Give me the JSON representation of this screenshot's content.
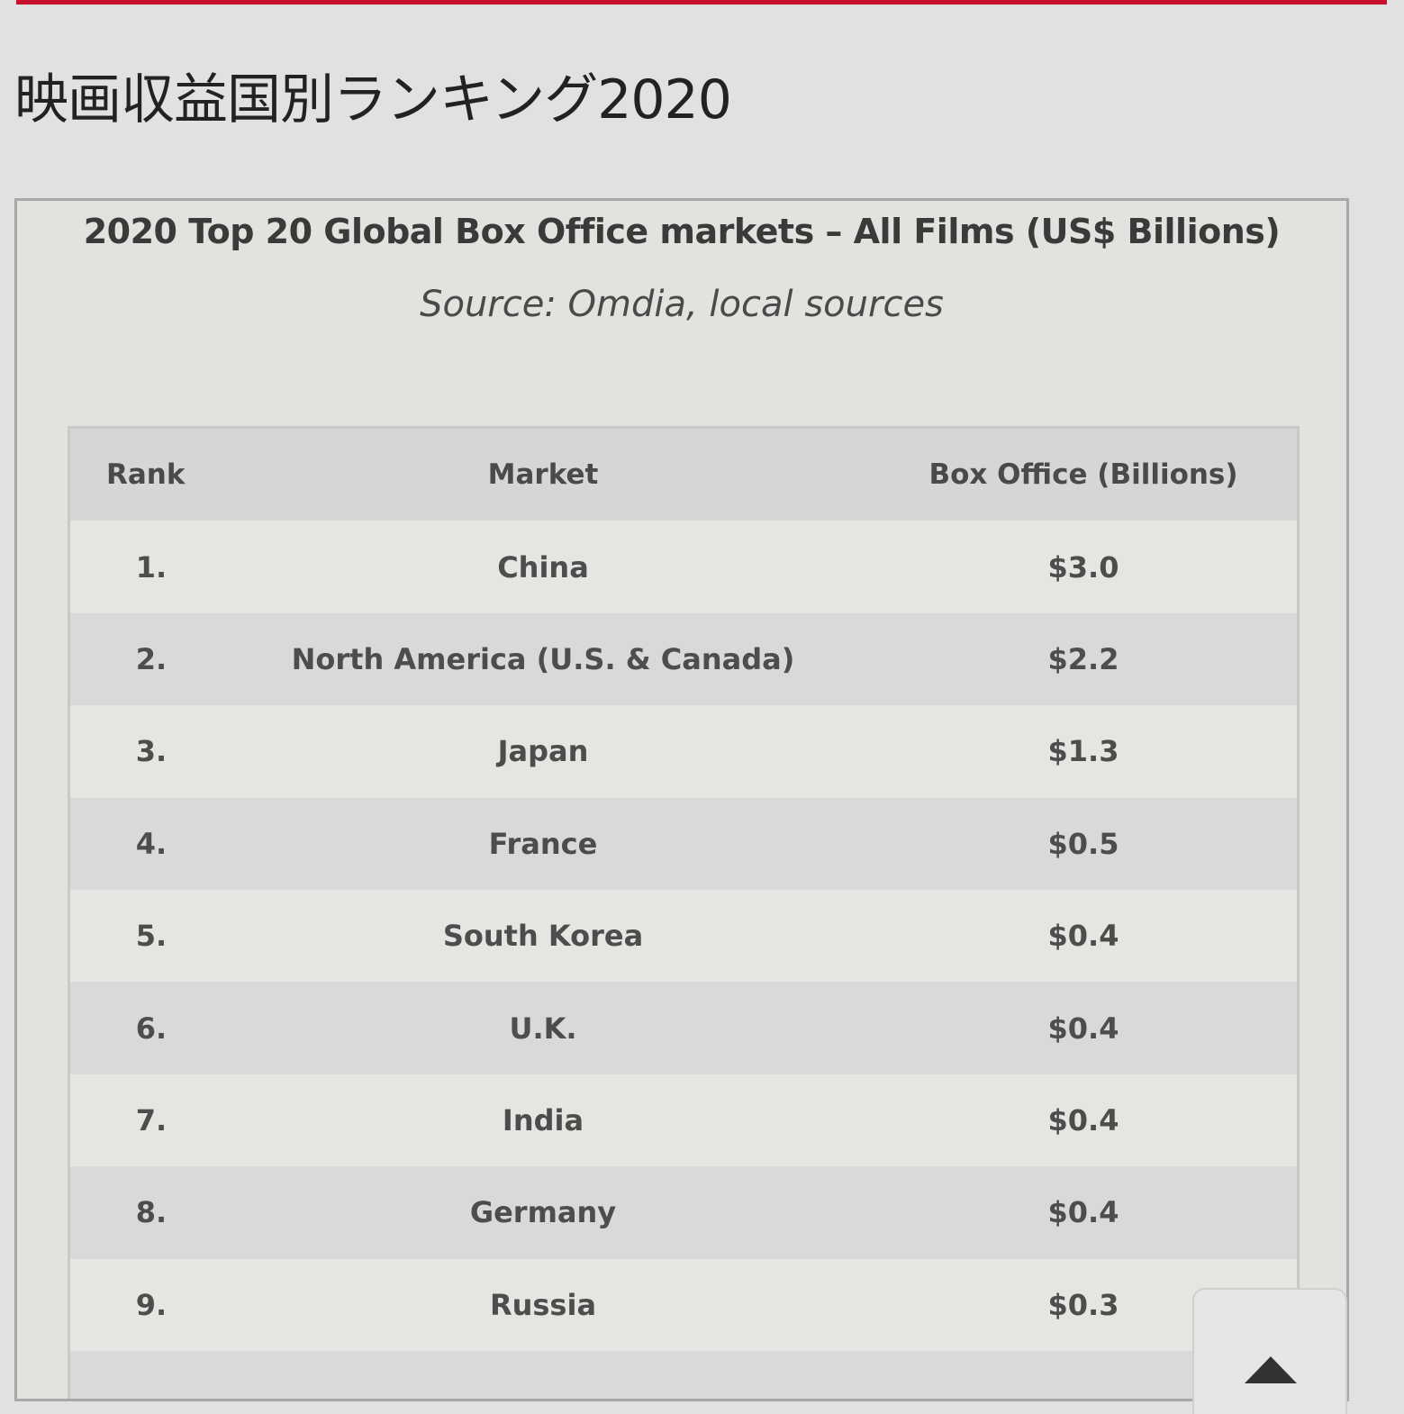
{
  "page": {
    "title": "映画収益国別ランキング2020"
  },
  "figure": {
    "title": "2020 Top 20 Global Box Office markets – All Films (US$ Billions)",
    "source": "Source: Omdia, local sources",
    "table": {
      "columns": [
        "Rank",
        "Market",
        "Box Office (Billions)"
      ],
      "rows": [
        {
          "rank": "1.",
          "market": "China",
          "value": "$3.0"
        },
        {
          "rank": "2.",
          "market": "North America (U.S. & Canada)",
          "value": "$2.2"
        },
        {
          "rank": "3.",
          "market": "Japan",
          "value": "$1.3"
        },
        {
          "rank": "4.",
          "market": "France",
          "value": "$0.5"
        },
        {
          "rank": "5.",
          "market": "South Korea",
          "value": "$0.4"
        },
        {
          "rank": "6.",
          "market": "U.K.",
          "value": "$0.4"
        },
        {
          "rank": "7.",
          "market": "India",
          "value": "$0.4"
        },
        {
          "rank": "8.",
          "market": "Germany",
          "value": "$0.4"
        },
        {
          "rank": "9.",
          "market": "Russia",
          "value": "$0.3"
        }
      ]
    }
  },
  "scroll_top_button": {
    "icon": "triangle-up-icon"
  },
  "colors": {
    "accent": "#c8102e",
    "background": "#e1e1e1"
  }
}
